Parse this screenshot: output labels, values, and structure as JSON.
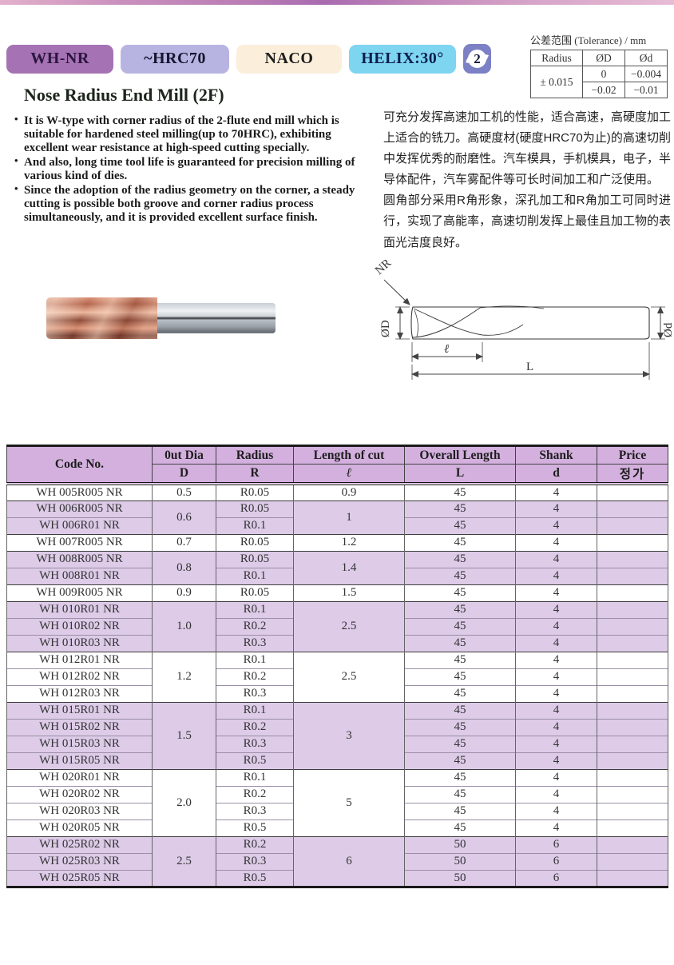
{
  "header": {
    "badges": [
      {
        "label": "WH-NR",
        "bg": "#a573b4",
        "fg": "#2b1540"
      },
      {
        "label": "~HRC70",
        "bg": "#b8b4e1",
        "fg": "#15152f"
      },
      {
        "label": "NACO",
        "bg": "#fbeeda",
        "fg": "#1c1c1c"
      },
      {
        "label": "HELIX:30°",
        "bg": "#7ed5f0",
        "fg": "#0c1e4e"
      }
    ],
    "flute_badge": {
      "value": "2",
      "bg": "#7c80c5"
    },
    "tolerance": {
      "title": "公差范围 (Tolerance) / mm",
      "col_headers": [
        "Radius",
        "ØD",
        "Ød"
      ],
      "radius_value": "± 0.015",
      "od_values": [
        "0",
        "−0.02"
      ],
      "d_values": [
        "−0.004",
        "−0.01"
      ]
    }
  },
  "intro": {
    "title": "Nose Radius End Mill (2F)",
    "bullets": [
      "It is W-type with corner radius of the 2-flute end mill which is suitable for hardened steel milling(up to 70HRC), exhibiting excellent wear resistance at high-speed cutting specially.",
      "And also, long time tool life is guaranteed for precision milling of various kind of dies.",
      "Since the adoption of the radius geometry on the corner, a steady cutting is possible both groove and corner radius process simultaneously, and it is provided excellent surface finish."
    ],
    "cn_paragraphs": [
      "可充分发挥高速加工机的性能，适合高速，高硬度加工上适合的铣刀。高硬度材(硬度HRC70为止)的高速切削中发挥优秀的耐磨性。汽车模具，手机模具，电子，半导体配件，汽车雾配件等可长时间加工和广泛使用。",
      "圆角部分采用R角形象，深孔加工和R角加工可同时进行，实现了高能率，高速切削发挥上最佳且加工物的表面光洁度良好。"
    ]
  },
  "diagram": {
    "nr": "NR",
    "od": "ØD",
    "d": "Ød",
    "cut": "ℓ",
    "overall": "L"
  },
  "table": {
    "headers_row1": [
      "Code No.",
      "0ut Dia",
      "Radius",
      "Length of cut",
      "Overall Length",
      "Shank",
      "Price"
    ],
    "headers_row2": [
      "D",
      "R",
      "ℓ",
      "L",
      "d",
      "정가"
    ],
    "groups": [
      {
        "dia": "0.5",
        "cut": "0.9",
        "shade": false,
        "rows": [
          {
            "code": "WH 005R005 NR",
            "radius": "R0.05",
            "overall": "45",
            "shank": "4",
            "price": ""
          }
        ]
      },
      {
        "dia": "0.6",
        "cut": "1",
        "shade": true,
        "rows": [
          {
            "code": "WH 006R005 NR",
            "radius": "R0.05",
            "overall": "45",
            "shank": "4",
            "price": ""
          },
          {
            "code": "WH 006R01 NR",
            "radius": "R0.1",
            "overall": "45",
            "shank": "4",
            "price": ""
          }
        ]
      },
      {
        "dia": "0.7",
        "cut": "1.2",
        "shade": false,
        "rows": [
          {
            "code": "WH 007R005 NR",
            "radius": "R0.05",
            "overall": "45",
            "shank": "4",
            "price": ""
          }
        ]
      },
      {
        "dia": "0.8",
        "cut": "1.4",
        "shade": true,
        "rows": [
          {
            "code": "WH 008R005 NR",
            "radius": "R0.05",
            "overall": "45",
            "shank": "4",
            "price": ""
          },
          {
            "code": "WH 008R01 NR",
            "radius": "R0.1",
            "overall": "45",
            "shank": "4",
            "price": ""
          }
        ]
      },
      {
        "dia": "0.9",
        "cut": "1.5",
        "shade": false,
        "rows": [
          {
            "code": "WH 009R005 NR",
            "radius": "R0.05",
            "overall": "45",
            "shank": "4",
            "price": ""
          }
        ]
      },
      {
        "dia": "1.0",
        "cut": "2.5",
        "shade": true,
        "rows": [
          {
            "code": "WH 010R01 NR",
            "radius": "R0.1",
            "overall": "45",
            "shank": "4",
            "price": ""
          },
          {
            "code": "WH 010R02 NR",
            "radius": "R0.2",
            "overall": "45",
            "shank": "4",
            "price": ""
          },
          {
            "code": "WH 010R03 NR",
            "radius": "R0.3",
            "overall": "45",
            "shank": "4",
            "price": ""
          }
        ]
      },
      {
        "dia": "1.2",
        "cut": "2.5",
        "shade": false,
        "rows": [
          {
            "code": "WH 012R01 NR",
            "radius": "R0.1",
            "overall": "45",
            "shank": "4",
            "price": ""
          },
          {
            "code": "WH 012R02 NR",
            "radius": "R0.2",
            "overall": "45",
            "shank": "4",
            "price": ""
          },
          {
            "code": "WH 012R03 NR",
            "radius": "R0.3",
            "overall": "45",
            "shank": "4",
            "price": ""
          }
        ]
      },
      {
        "dia": "1.5",
        "cut": "3",
        "shade": true,
        "rows": [
          {
            "code": "WH 015R01 NR",
            "radius": "R0.1",
            "overall": "45",
            "shank": "4",
            "price": ""
          },
          {
            "code": "WH 015R02 NR",
            "radius": "R0.2",
            "overall": "45",
            "shank": "4",
            "price": ""
          },
          {
            "code": "WH 015R03 NR",
            "radius": "R0.3",
            "overall": "45",
            "shank": "4",
            "price": ""
          },
          {
            "code": "WH 015R05 NR",
            "radius": "R0.5",
            "overall": "45",
            "shank": "4",
            "price": ""
          }
        ]
      },
      {
        "dia": "2.0",
        "cut": "5",
        "shade": false,
        "rows": [
          {
            "code": "WH 020R01 NR",
            "radius": "R0.1",
            "overall": "45",
            "shank": "4",
            "price": ""
          },
          {
            "code": "WH 020R02 NR",
            "radius": "R0.2",
            "overall": "45",
            "shank": "4",
            "price": ""
          },
          {
            "code": "WH 020R03 NR",
            "radius": "R0.3",
            "overall": "45",
            "shank": "4",
            "price": ""
          },
          {
            "code": "WH 020R05 NR",
            "radius": "R0.5",
            "overall": "45",
            "shank": "4",
            "price": ""
          }
        ]
      },
      {
        "dia": "2.5",
        "cut": "6",
        "shade": true,
        "rows": [
          {
            "code": "WH 025R02 NR",
            "radius": "R0.2",
            "overall": "50",
            "shank": "6",
            "price": ""
          },
          {
            "code": "WH 025R03 NR",
            "radius": "R0.3",
            "overall": "50",
            "shank": "6",
            "price": ""
          },
          {
            "code": "WH 025R05 NR",
            "radius": "R0.5",
            "overall": "50",
            "shank": "6",
            "price": ""
          }
        ]
      }
    ]
  },
  "colors": {
    "table_header_bg": "#d3b0de",
    "row_shade_bg": "#ddcbe8"
  }
}
